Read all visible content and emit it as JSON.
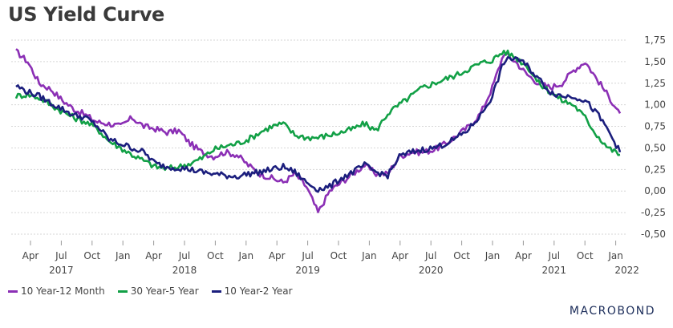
{
  "chart_data": {
    "type": "line",
    "title": "US Yield Curve",
    "y_ticks": [
      "1,75",
      "1,50",
      "1,25",
      "1,00",
      "0,75",
      "0,50",
      "0,25",
      "0,00",
      "-0,25",
      "-0,50"
    ],
    "ylim": [
      -0.5,
      1.75
    ],
    "x_month_labels": [
      "Apr",
      "Jul",
      "Oct",
      "Jan",
      "Apr",
      "Jul",
      "Oct",
      "Jan",
      "Apr",
      "Jul",
      "Oct",
      "Jan",
      "Apr",
      "Jul",
      "Oct",
      "Jan",
      "Apr",
      "Jul",
      "Oct",
      "Jan"
    ],
    "x_year_labels": [
      "2017",
      "2018",
      "2019",
      "2020",
      "2021",
      "2022"
    ],
    "grid": true,
    "legend_position": "bottom-left",
    "series": [
      {
        "name": "10 Year-12 Month",
        "color": "#8b2fb5",
        "values": [
          1.62,
          1.5,
          1.25,
          1.18,
          1.05,
          0.95,
          0.88,
          0.8,
          0.78,
          0.75,
          0.85,
          0.75,
          0.72,
          0.68,
          0.7,
          0.55,
          0.45,
          0.4,
          0.45,
          0.42,
          0.3,
          0.2,
          0.15,
          0.1,
          0.2,
          0.05,
          -0.25,
          0.0,
          0.1,
          0.2,
          0.3,
          0.2,
          0.2,
          0.4,
          0.45,
          0.45,
          0.48,
          0.55,
          0.65,
          0.75,
          0.9,
          1.2,
          1.6,
          1.5,
          1.35,
          1.25,
          1.2,
          1.25,
          1.4,
          1.5,
          1.3,
          1.1,
          0.9
        ]
      },
      {
        "name": "30 Year-5 Year",
        "color": "#12a046",
        "values": [
          1.1,
          1.12,
          1.08,
          1.0,
          0.92,
          0.85,
          0.8,
          0.72,
          0.58,
          0.5,
          0.42,
          0.35,
          0.28,
          0.26,
          0.28,
          0.32,
          0.38,
          0.48,
          0.52,
          0.55,
          0.6,
          0.68,
          0.75,
          0.78,
          0.65,
          0.62,
          0.62,
          0.65,
          0.68,
          0.72,
          0.78,
          0.7,
          0.9,
          1.0,
          1.1,
          1.2,
          1.25,
          1.3,
          1.35,
          1.42,
          1.48,
          1.52,
          1.62,
          1.55,
          1.45,
          1.25,
          1.15,
          1.05,
          1.0,
          0.85,
          0.65,
          0.5,
          0.42
        ]
      },
      {
        "name": "10 Year-2 Year",
        "color": "#1b1e7d",
        "values": [
          1.22,
          1.15,
          1.1,
          1.02,
          0.95,
          0.88,
          0.85,
          0.75,
          0.6,
          0.55,
          0.5,
          0.45,
          0.32,
          0.28,
          0.27,
          0.25,
          0.22,
          0.2,
          0.18,
          0.17,
          0.2,
          0.22,
          0.25,
          0.28,
          0.22,
          0.1,
          0.02,
          0.05,
          0.15,
          0.22,
          0.3,
          0.22,
          0.18,
          0.4,
          0.45,
          0.48,
          0.5,
          0.55,
          0.62,
          0.72,
          0.88,
          1.1,
          1.5,
          1.55,
          1.45,
          1.3,
          1.15,
          1.1,
          1.1,
          1.05,
          0.9,
          0.7,
          0.45
        ]
      }
    ]
  },
  "legend": {
    "item1": "10 Year-12 Month",
    "item2": "30 Year-5 Year",
    "item3": "10 Year-2 Year"
  },
  "brand": "MACROBOND"
}
